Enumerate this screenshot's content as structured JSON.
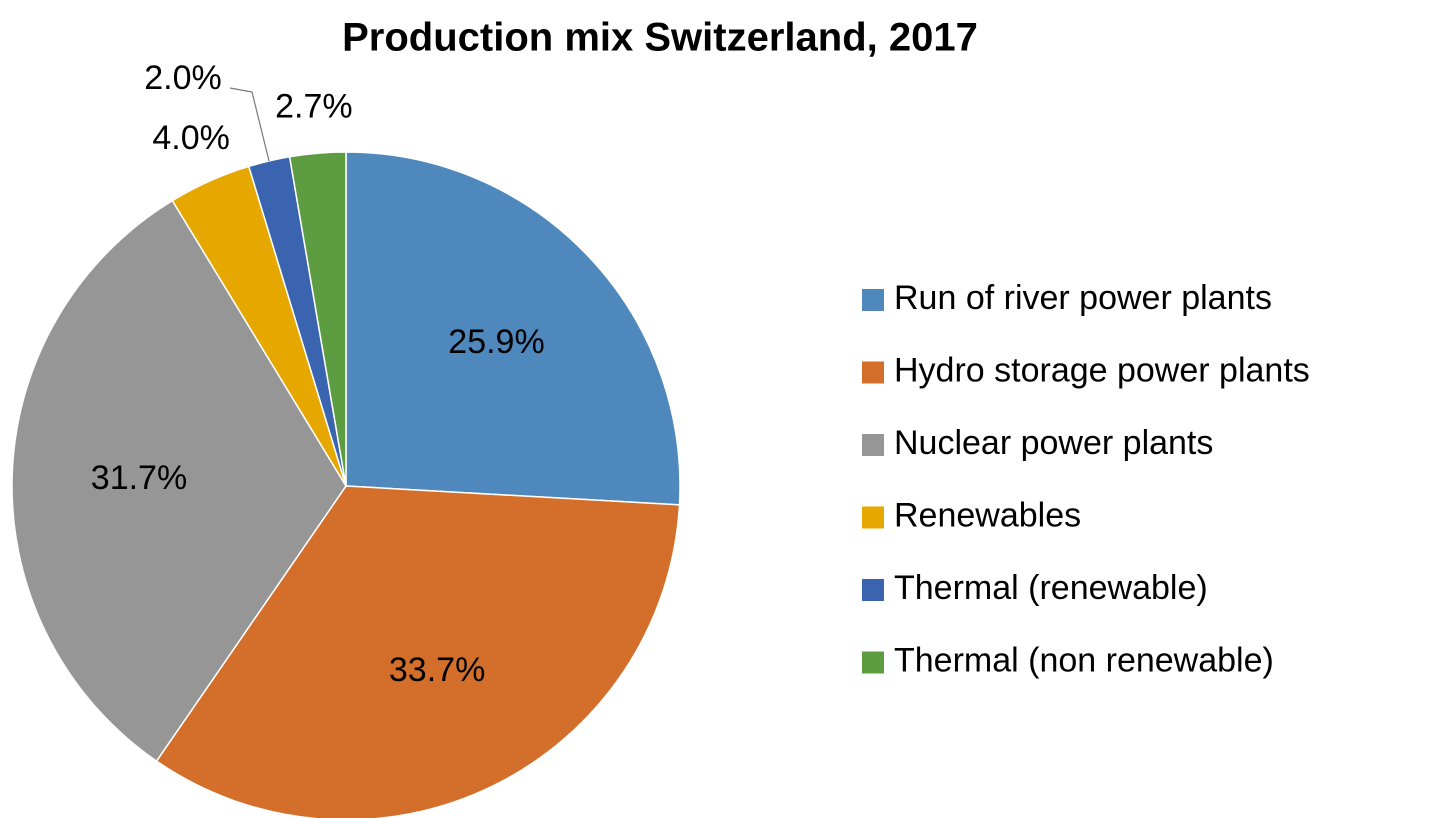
{
  "chart_data": {
    "type": "pie",
    "title": "Production mix Switzerland, 2017",
    "categories": [
      "Run of river power plants",
      "Hydro storage power plants",
      "Nuclear power plants",
      "Renewables",
      "Thermal (renewable)",
      "Thermal (non renewable)"
    ],
    "values": [
      25.9,
      33.7,
      31.7,
      4.0,
      2.0,
      2.7
    ],
    "value_labels": [
      "25.9%",
      "33.7%",
      "31.7%",
      "4.0%",
      "2.0%",
      "2.7%"
    ],
    "colors": [
      "#4f88bd",
      "#d36f2b",
      "#969696",
      "#e6a800",
      "#3b64b0",
      "#5e9c41"
    ],
    "legend": "right"
  }
}
